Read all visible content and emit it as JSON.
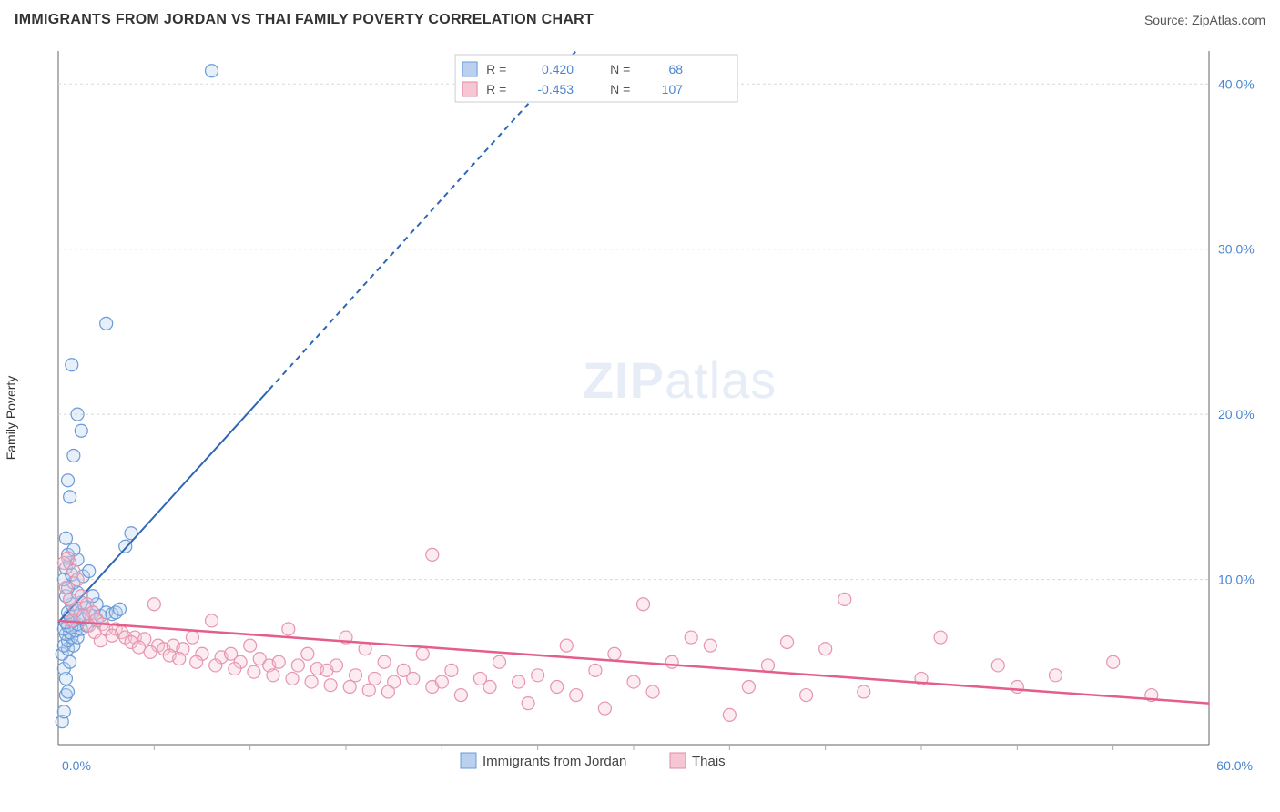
{
  "header": {
    "title": "IMMIGRANTS FROM JORDAN VS THAI FAMILY POVERTY CORRELATION CHART",
    "source_prefix": "Source: ",
    "source_name": "ZipAtlas.com"
  },
  "chart": {
    "type": "scatter",
    "ylabel": "Family Poverty",
    "background_color": "#ffffff",
    "grid_color": "#d8d8d8",
    "axis_color": "#666666",
    "tick_minor_color": "#aaaaaa",
    "xlim": [
      0,
      60
    ],
    "ylim": [
      0,
      42
    ],
    "x_ticks_major": [
      0,
      60
    ],
    "x_ticks_minor": [
      5,
      10,
      15,
      20,
      25,
      30,
      35,
      40,
      45,
      50,
      55
    ],
    "y_ticks_major": [
      10,
      20,
      30,
      40
    ],
    "y_tick_labels": [
      "10.0%",
      "20.0%",
      "30.0%",
      "40.0%"
    ],
    "x_min_label": "0.0%",
    "x_max_label": "60.0%",
    "marker_radius": 7,
    "marker_stroke_width": 1.2,
    "marker_fill_opacity": 0.35,
    "watermark": {
      "text_bold": "ZIP",
      "text_light": "atlas",
      "color": "#7aa0d4"
    },
    "legend_top": {
      "border_color": "#cccccc",
      "bg": "#ffffff",
      "label_color": "#555555",
      "value_color": "#4a86d0",
      "rows": [
        {
          "swatch_fill": "#b9d0ef",
          "swatch_stroke": "#6a9bd8",
          "r_label": "R =",
          "r_val": "0.420",
          "n_label": "N =",
          "n_val": "68"
        },
        {
          "swatch_fill": "#f7c6d4",
          "swatch_stroke": "#e08aa6",
          "r_label": "R =",
          "r_val": "-0.453",
          "n_label": "N =",
          "n_val": "107"
        }
      ]
    },
    "legend_bottom": {
      "items": [
        {
          "swatch_fill": "#b9d0ef",
          "swatch_stroke": "#6a9bd8",
          "label": "Immigrants from Jordan"
        },
        {
          "swatch_fill": "#f7c6d4",
          "swatch_stroke": "#e08aa6",
          "label": "Thais"
        }
      ],
      "text_color": "#444444"
    },
    "series": [
      {
        "name": "Immigrants from Jordan",
        "color_fill": "#b9d0ef",
        "color_stroke": "#6a9bd8",
        "trend": {
          "x1": 0,
          "y1": 7.4,
          "x2_solid": 11,
          "y2_solid": 21.5,
          "x2_dash": 27,
          "y2_dash": 42,
          "color": "#2f66b6",
          "width": 2,
          "dash": "6 5"
        },
        "points": [
          [
            0.2,
            1.4
          ],
          [
            0.3,
            2.0
          ],
          [
            0.4,
            3.0
          ],
          [
            0.5,
            3.2
          ],
          [
            0.4,
            4.0
          ],
          [
            0.3,
            4.6
          ],
          [
            0.6,
            5.0
          ],
          [
            0.2,
            5.5
          ],
          [
            0.5,
            5.8
          ],
          [
            0.3,
            6.0
          ],
          [
            0.8,
            6.0
          ],
          [
            0.5,
            6.3
          ],
          [
            0.7,
            6.5
          ],
          [
            0.4,
            6.7
          ],
          [
            1.0,
            6.5
          ],
          [
            0.6,
            6.8
          ],
          [
            0.9,
            6.9
          ],
          [
            0.3,
            7.0
          ],
          [
            0.5,
            7.2
          ],
          [
            1.2,
            7.0
          ],
          [
            0.7,
            7.1
          ],
          [
            1.0,
            7.3
          ],
          [
            0.4,
            7.4
          ],
          [
            1.5,
            7.2
          ],
          [
            0.8,
            7.5
          ],
          [
            1.3,
            7.6
          ],
          [
            0.6,
            7.8
          ],
          [
            1.1,
            7.8
          ],
          [
            2.0,
            7.5
          ],
          [
            1.6,
            7.9
          ],
          [
            0.5,
            8.0
          ],
          [
            1.8,
            8.0
          ],
          [
            2.2,
            7.8
          ],
          [
            0.9,
            8.1
          ],
          [
            2.5,
            8.0
          ],
          [
            1.4,
            8.3
          ],
          [
            2.8,
            7.9
          ],
          [
            0.7,
            8.5
          ],
          [
            3.0,
            8.0
          ],
          [
            1.2,
            8.6
          ],
          [
            0.6,
            8.8
          ],
          [
            2.0,
            8.5
          ],
          [
            0.4,
            9.0
          ],
          [
            3.2,
            8.2
          ],
          [
            1.0,
            9.2
          ],
          [
            1.8,
            9.0
          ],
          [
            0.5,
            9.5
          ],
          [
            0.8,
            9.8
          ],
          [
            0.3,
            10.0
          ],
          [
            1.3,
            10.2
          ],
          [
            0.7,
            10.3
          ],
          [
            1.6,
            10.5
          ],
          [
            0.4,
            10.7
          ],
          [
            0.6,
            11.0
          ],
          [
            1.0,
            11.2
          ],
          [
            0.5,
            11.5
          ],
          [
            0.8,
            11.8
          ],
          [
            3.5,
            12.0
          ],
          [
            0.4,
            12.5
          ],
          [
            3.8,
            12.8
          ],
          [
            0.6,
            15.0
          ],
          [
            0.5,
            16.0
          ],
          [
            0.8,
            17.5
          ],
          [
            1.2,
            19.0
          ],
          [
            1.0,
            20.0
          ],
          [
            0.7,
            23.0
          ],
          [
            2.5,
            25.5
          ],
          [
            8.0,
            40.8
          ]
        ]
      },
      {
        "name": "Thais",
        "color_fill": "#f7c6d4",
        "color_stroke": "#e695af",
        "trend": {
          "x1": 0,
          "y1": 7.5,
          "x2_solid": 60,
          "y2_solid": 2.5,
          "color": "#e45e8a",
          "width": 2.5
        },
        "points": [
          [
            0.5,
            11.3
          ],
          [
            0.3,
            11.0
          ],
          [
            0.8,
            10.5
          ],
          [
            1.0,
            10.0
          ],
          [
            0.4,
            9.5
          ],
          [
            1.2,
            9.0
          ],
          [
            0.6,
            8.8
          ],
          [
            1.5,
            8.5
          ],
          [
            0.9,
            8.2
          ],
          [
            1.8,
            8.0
          ],
          [
            1.3,
            7.8
          ],
          [
            2.0,
            7.6
          ],
          [
            0.7,
            7.5
          ],
          [
            2.3,
            7.3
          ],
          [
            1.6,
            7.2
          ],
          [
            2.5,
            7.0
          ],
          [
            3.0,
            7.0
          ],
          [
            1.9,
            6.8
          ],
          [
            3.3,
            6.8
          ],
          [
            2.8,
            6.6
          ],
          [
            3.5,
            6.5
          ],
          [
            4.0,
            6.5
          ],
          [
            2.2,
            6.3
          ],
          [
            4.5,
            6.4
          ],
          [
            3.8,
            6.2
          ],
          [
            5.0,
            8.5
          ],
          [
            5.2,
            6.0
          ],
          [
            4.2,
            5.9
          ],
          [
            5.5,
            5.8
          ],
          [
            6.0,
            6.0
          ],
          [
            4.8,
            5.6
          ],
          [
            6.5,
            5.8
          ],
          [
            5.8,
            5.4
          ],
          [
            7.0,
            6.5
          ],
          [
            6.3,
            5.2
          ],
          [
            7.5,
            5.5
          ],
          [
            8.0,
            7.5
          ],
          [
            7.2,
            5.0
          ],
          [
            8.5,
            5.3
          ],
          [
            9.0,
            5.5
          ],
          [
            8.2,
            4.8
          ],
          [
            9.5,
            5.0
          ],
          [
            10.0,
            6.0
          ],
          [
            9.2,
            4.6
          ],
          [
            10.5,
            5.2
          ],
          [
            11.0,
            4.8
          ],
          [
            10.2,
            4.4
          ],
          [
            11.5,
            5.0
          ],
          [
            12.0,
            7.0
          ],
          [
            11.2,
            4.2
          ],
          [
            12.5,
            4.8
          ],
          [
            13.0,
            5.5
          ],
          [
            12.2,
            4.0
          ],
          [
            13.5,
            4.6
          ],
          [
            14.0,
            4.5
          ],
          [
            13.2,
            3.8
          ],
          [
            14.5,
            4.8
          ],
          [
            15.0,
            6.5
          ],
          [
            14.2,
            3.6
          ],
          [
            15.5,
            4.2
          ],
          [
            16.0,
            5.8
          ],
          [
            15.2,
            3.5
          ],
          [
            16.5,
            4.0
          ],
          [
            17.0,
            5.0
          ],
          [
            16.2,
            3.3
          ],
          [
            17.5,
            3.8
          ],
          [
            18.0,
            4.5
          ],
          [
            17.2,
            3.2
          ],
          [
            18.5,
            4.0
          ],
          [
            19.0,
            5.5
          ],
          [
            19.5,
            11.5
          ],
          [
            19.5,
            3.5
          ],
          [
            20.0,
            3.8
          ],
          [
            20.5,
            4.5
          ],
          [
            21.0,
            3.0
          ],
          [
            22.0,
            4.0
          ],
          [
            22.5,
            3.5
          ],
          [
            23.0,
            5.0
          ],
          [
            24.0,
            3.8
          ],
          [
            24.5,
            2.5
          ],
          [
            25.0,
            4.2
          ],
          [
            26.0,
            3.5
          ],
          [
            26.5,
            6.0
          ],
          [
            27.0,
            3.0
          ],
          [
            28.0,
            4.5
          ],
          [
            28.5,
            2.2
          ],
          [
            29.0,
            5.5
          ],
          [
            30.0,
            3.8
          ],
          [
            30.5,
            8.5
          ],
          [
            31.0,
            3.2
          ],
          [
            32.0,
            5.0
          ],
          [
            33.0,
            6.5
          ],
          [
            34.0,
            6.0
          ],
          [
            35.0,
            1.8
          ],
          [
            36.0,
            3.5
          ],
          [
            37.0,
            4.8
          ],
          [
            38.0,
            6.2
          ],
          [
            39.0,
            3.0
          ],
          [
            40.0,
            5.8
          ],
          [
            41.0,
            8.8
          ],
          [
            42.0,
            3.2
          ],
          [
            45.0,
            4.0
          ],
          [
            46.0,
            6.5
          ],
          [
            49.0,
            4.8
          ],
          [
            50.0,
            3.5
          ],
          [
            52.0,
            4.2
          ],
          [
            55.0,
            5.0
          ],
          [
            57.0,
            3.0
          ]
        ]
      }
    ]
  }
}
